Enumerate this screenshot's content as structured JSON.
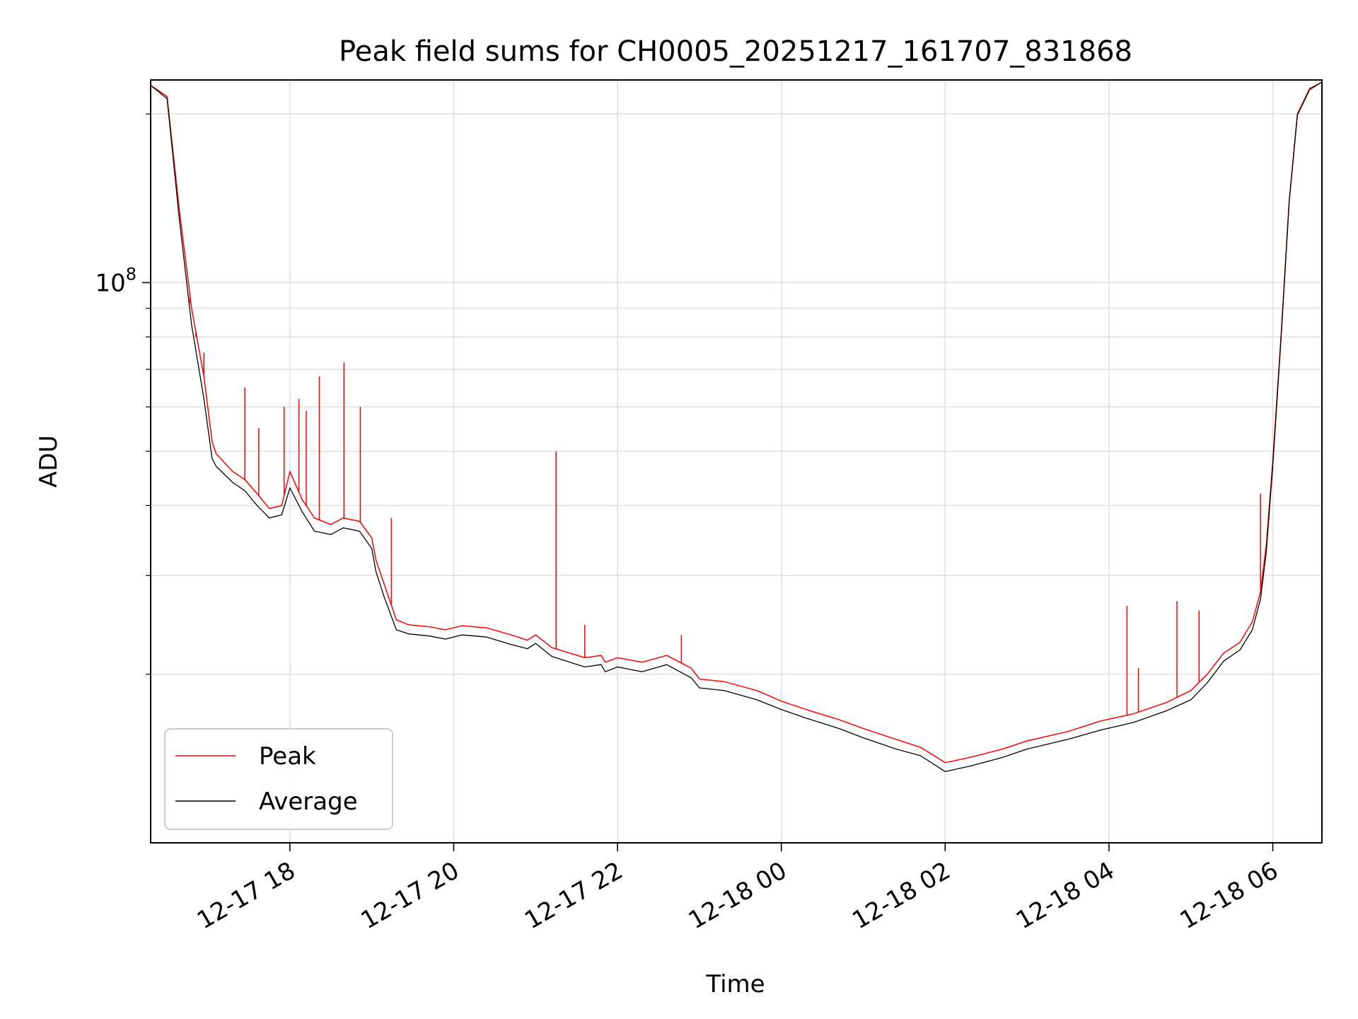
{
  "chart_data": {
    "type": "line",
    "title": "Peak field sums for CH0005_20251217_161707_831868",
    "xlabel": "Time",
    "ylabel": "ADU",
    "yscale": "log",
    "ylim": [
      10000000,
      230000000
    ],
    "x_unit": "hours since 2025-12-17 00:00",
    "xlim": [
      16.3,
      30.6
    ],
    "grid": true,
    "legend_position": "lower-left",
    "x_ticks": [
      {
        "value": 18,
        "label": "12-17 18"
      },
      {
        "value": 20,
        "label": "12-17 20"
      },
      {
        "value": 22,
        "label": "12-17 22"
      },
      {
        "value": 24,
        "label": "12-18 00"
      },
      {
        "value": 26,
        "label": "12-18 02"
      },
      {
        "value": 28,
        "label": "12-18 04"
      },
      {
        "value": 30,
        "label": "12-18 06"
      }
    ],
    "y_major_ticks": [
      {
        "value": 100000000,
        "base": "10",
        "exponent": "8"
      }
    ],
    "y_minor_ticks": [
      20000000,
      30000000,
      40000000,
      50000000,
      60000000,
      70000000,
      80000000,
      90000000,
      200000000
    ],
    "series": [
      {
        "name": "Peak",
        "color": "#ff0000",
        "x": [
          16.3,
          16.5,
          16.65,
          16.8,
          16.95,
          17.05,
          17.1,
          17.3,
          17.45,
          17.6,
          17.75,
          17.9,
          18.0,
          18.15,
          18.3,
          18.5,
          18.65,
          18.85,
          19.0,
          19.05,
          19.15,
          19.3,
          19.45,
          19.7,
          19.9,
          20.1,
          20.4,
          20.7,
          20.9,
          21.0,
          21.2,
          21.6,
          21.8,
          21.85,
          22.0,
          22.3,
          22.6,
          22.9,
          23.0,
          23.3,
          23.7,
          24.0,
          24.3,
          24.7,
          25.0,
          25.4,
          25.7,
          25.9,
          26.0,
          26.3,
          26.7,
          27.0,
          27.5,
          27.9,
          28.3,
          28.7,
          29.0,
          29.2,
          29.4,
          29.6,
          29.75,
          29.85,
          29.92,
          30.0,
          30.1,
          30.2,
          30.3,
          30.45,
          30.6
        ],
        "values": [
          225000000,
          215000000,
          135000000,
          90000000,
          68000000,
          52000000,
          49500000,
          46000000,
          44500000,
          42000000,
          39500000,
          40000000,
          46000000,
          41000000,
          38000000,
          37000000,
          38000000,
          37500000,
          35000000,
          32000000,
          29000000,
          25000000,
          24500000,
          24300000,
          24000000,
          24400000,
          24200000,
          23500000,
          23000000,
          23500000,
          22300000,
          21400000,
          21600000,
          21000000,
          21400000,
          21000000,
          21600000,
          20500000,
          19600000,
          19400000,
          18700000,
          17900000,
          17300000,
          16600000,
          16000000,
          15300000,
          14800000,
          14200000,
          13900000,
          14200000,
          14700000,
          15200000,
          15800000,
          16500000,
          17000000,
          17800000,
          18700000,
          20000000,
          21800000,
          22800000,
          24800000,
          28000000,
          34000000,
          48000000,
          80000000,
          140000000,
          200000000,
          222000000,
          228000000
        ]
      },
      {
        "name": "Average",
        "color": "#000000",
        "x": [
          16.3,
          16.5,
          16.65,
          16.8,
          16.95,
          17.05,
          17.1,
          17.3,
          17.45,
          17.6,
          17.75,
          17.9,
          18.0,
          18.15,
          18.3,
          18.5,
          18.65,
          18.85,
          19.0,
          19.05,
          19.15,
          19.3,
          19.45,
          19.7,
          19.9,
          20.1,
          20.4,
          20.7,
          20.9,
          21.0,
          21.2,
          21.6,
          21.8,
          21.85,
          22.0,
          22.3,
          22.6,
          22.9,
          23.0,
          23.3,
          23.7,
          24.0,
          24.3,
          24.7,
          25.0,
          25.4,
          25.7,
          25.9,
          26.0,
          26.3,
          26.7,
          27.0,
          27.5,
          27.9,
          28.3,
          28.7,
          29.0,
          29.2,
          29.4,
          29.6,
          29.75,
          29.85,
          29.92,
          30.0,
          30.1,
          30.2,
          30.3,
          30.45,
          30.6
        ],
        "values": [
          225000000,
          213000000,
          130000000,
          84000000,
          62000000,
          48500000,
          47000000,
          44000000,
          42500000,
          40000000,
          38000000,
          38500000,
          43000000,
          39000000,
          36000000,
          35500000,
          36500000,
          36000000,
          33500000,
          30500000,
          27500000,
          24000000,
          23600000,
          23400000,
          23100000,
          23500000,
          23300000,
          22600000,
          22200000,
          22700000,
          21500000,
          20600000,
          20800000,
          20200000,
          20600000,
          20200000,
          20800000,
          19700000,
          18900000,
          18700000,
          18000000,
          17300000,
          16700000,
          16000000,
          15400000,
          14700000,
          14300000,
          13700000,
          13400000,
          13700000,
          14200000,
          14700000,
          15300000,
          15900000,
          16400000,
          17200000,
          18000000,
          19300000,
          21100000,
          22100000,
          24000000,
          27200000,
          33000000,
          47000000,
          79000000,
          139000000,
          199000000,
          221000000,
          228000000
        ]
      }
    ],
    "spikes": [
      {
        "series": "Peak",
        "x": 16.78,
        "value": 92000000
      },
      {
        "series": "Peak",
        "x": 16.85,
        "value": 80000000
      },
      {
        "series": "Peak",
        "x": 16.95,
        "value": 75000000
      },
      {
        "series": "Peak",
        "x": 17.45,
        "value": 65000000
      },
      {
        "series": "Peak",
        "x": 17.62,
        "value": 55000000
      },
      {
        "series": "Peak",
        "x": 17.93,
        "value": 60000000
      },
      {
        "series": "Peak",
        "x": 18.11,
        "value": 62000000
      },
      {
        "series": "Peak",
        "x": 18.2,
        "value": 59000000
      },
      {
        "series": "Peak",
        "x": 18.36,
        "value": 68000000
      },
      {
        "series": "Peak",
        "x": 18.66,
        "value": 72000000
      },
      {
        "series": "Peak",
        "x": 18.86,
        "value": 60000000
      },
      {
        "series": "Peak",
        "x": 19.24,
        "value": 38000000
      },
      {
        "series": "Peak",
        "x": 21.25,
        "value": 50000000
      },
      {
        "series": "Peak",
        "x": 21.6,
        "value": 24500000
      },
      {
        "series": "Peak",
        "x": 22.78,
        "value": 23500000
      },
      {
        "series": "Peak",
        "x": 28.22,
        "value": 26500000
      },
      {
        "series": "Peak",
        "x": 28.36,
        "value": 20500000
      },
      {
        "series": "Peak",
        "x": 28.83,
        "value": 27000000
      },
      {
        "series": "Peak",
        "x": 29.1,
        "value": 26000000
      },
      {
        "series": "Peak",
        "x": 29.85,
        "value": 42000000
      }
    ]
  }
}
